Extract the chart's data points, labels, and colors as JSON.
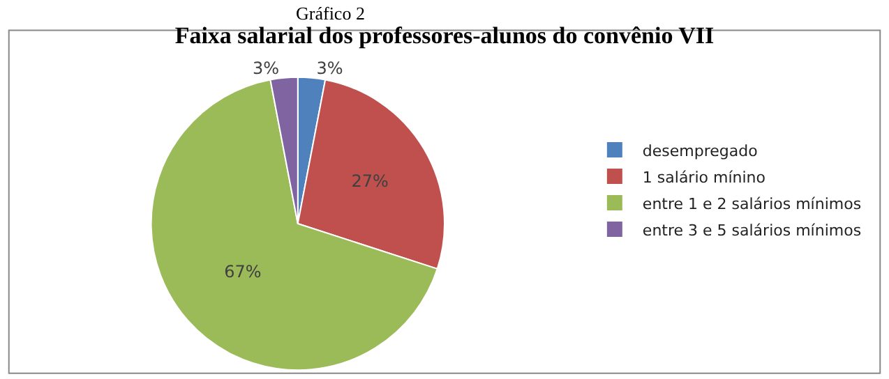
{
  "chart_data": {
    "type": "pie",
    "title": "Faixa salarial dos professores-alunos do convênio VII",
    "annotations": [
      "Gráfico 2"
    ],
    "categories": [
      "desempregado",
      "1 salário mínino",
      "entre 1 e 2 salários mínimos",
      "entre 3 e 5 salários mínimos"
    ],
    "values": [
      3,
      27,
      67,
      3
    ],
    "value_labels": [
      "3%",
      "27%",
      "67%",
      "3%"
    ],
    "colors": [
      "#4f81bd",
      "#c0504d",
      "#9bbb59",
      "#8064a2"
    ],
    "legend": "right"
  }
}
